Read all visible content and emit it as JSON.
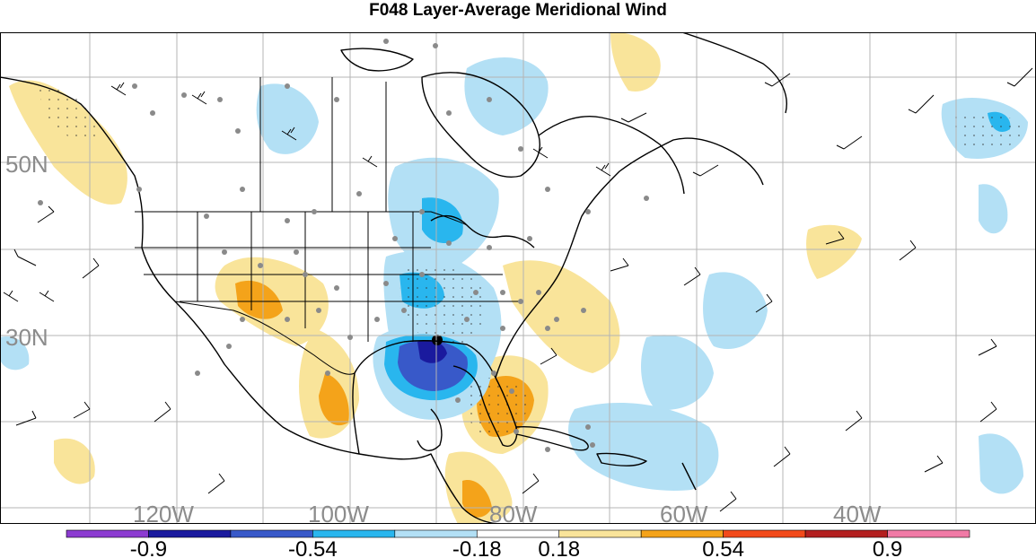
{
  "title": "F048 Layer-Average Meridional Wind",
  "map": {
    "lat_labels": [
      "50N",
      "30N"
    ],
    "lon_labels": [
      "120W",
      "100W",
      "80W",
      "60W",
      "40W"
    ],
    "colors": {
      "land": "#ffffff",
      "coast": "#000000",
      "grid": "#b4b4b4",
      "neg_light": "#b3e0f5",
      "neg_mid": "#29b6ee",
      "neg_strong": "#3859c9",
      "neg_deep": "#1a1a9e",
      "pos_light": "#f9e49a",
      "pos_mid": "#f4a31a",
      "station": "#8a8a8a"
    }
  },
  "colorbar": {
    "colors": [
      "#8c3bd1",
      "#1a1a9e",
      "#3859c9",
      "#29b6ee",
      "#b3e0f5",
      "#ffffff",
      "#f9e49a",
      "#f4a31a",
      "#f24a1a",
      "#b31f1f",
      "#f07aa6"
    ],
    "labels": [
      "-0.9",
      "-0.54",
      "-0.18",
      "0.18",
      "0.54",
      "0.9"
    ]
  }
}
